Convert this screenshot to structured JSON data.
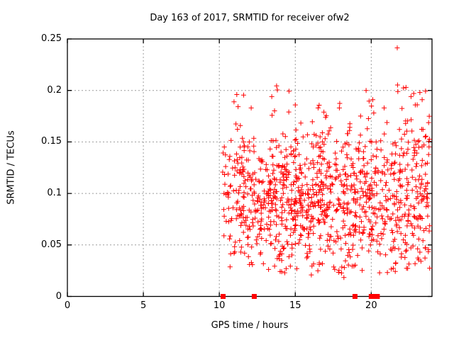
{
  "title": "Day 163 of 2017, SRMTID for receiver ofw2",
  "axes": {
    "x": {
      "label": "GPS time / hours",
      "lim": [
        0,
        24
      ],
      "ticks": [
        {
          "v": 0,
          "label": "0"
        },
        {
          "v": 5,
          "label": "5"
        },
        {
          "v": 10,
          "label": "10"
        },
        {
          "v": 15,
          "label": "15"
        },
        {
          "v": 20,
          "label": "20"
        }
      ]
    },
    "y": {
      "label": "SRMTID / TECUs",
      "lim": [
        0,
        0.25
      ],
      "ticks": [
        {
          "v": 0,
          "label": "0"
        },
        {
          "v": 0.05,
          "label": "0.05"
        },
        {
          "v": 0.1,
          "label": "0.1"
        },
        {
          "v": 0.15,
          "label": "0.15"
        },
        {
          "v": 0.2,
          "label": "0.2"
        },
        {
          "v": 0.25,
          "label": "0.25"
        }
      ]
    }
  },
  "colors": {
    "marker": "#ff0000",
    "grid": "#9c9c9c",
    "border": "#000000",
    "text": "#000000",
    "background": "#ffffff"
  },
  "chart_data": {
    "type": "scatter",
    "title": "Day 163 of 2017, SRMTID for receiver ofw2",
    "xlabel": "GPS time / hours",
    "ylabel": "SRMTID / TECUs",
    "xlim": [
      0,
      24
    ],
    "ylim": [
      0,
      0.25
    ],
    "grid": true,
    "legend": "none",
    "marker": {
      "shape": "plus",
      "color": "#ff0000",
      "size": 7
    },
    "x_data_range": [
      10.2,
      23.85
    ],
    "y_data_range": [
      0.018,
      0.242
    ],
    "note": "Dense unlabeled point cloud (~1100 pts); reproduced deterministically from seeded clusters below plus explicit extreme points read from pixels.",
    "seed": 163,
    "clusters": [
      {
        "x0": 10.2,
        "x1": 11.05,
        "n": 40,
        "mean": 0.1,
        "sd": 0.038
      },
      {
        "x0": 11.05,
        "x1": 12.35,
        "n": 105,
        "mean": 0.095,
        "sd": 0.035
      },
      {
        "x0": 12.35,
        "x1": 13.4,
        "n": 80,
        "mean": 0.09,
        "sd": 0.032
      },
      {
        "x0": 13.4,
        "x1": 14.6,
        "n": 115,
        "mean": 0.1,
        "sd": 0.036
      },
      {
        "x0": 14.6,
        "x1": 16.1,
        "n": 135,
        "mean": 0.092,
        "sd": 0.032
      },
      {
        "x0": 16.1,
        "x1": 17.6,
        "n": 135,
        "mean": 0.095,
        "sd": 0.034
      },
      {
        "x0": 17.6,
        "x1": 19.1,
        "n": 125,
        "mean": 0.093,
        "sd": 0.035
      },
      {
        "x0": 19.1,
        "x1": 20.6,
        "n": 115,
        "mean": 0.1,
        "sd": 0.036
      },
      {
        "x0": 20.6,
        "x1": 21.6,
        "n": 70,
        "mean": 0.095,
        "sd": 0.035
      },
      {
        "x0": 21.6,
        "x1": 22.7,
        "n": 85,
        "mean": 0.1,
        "sd": 0.036
      },
      {
        "x0": 22.7,
        "x1": 23.85,
        "n": 100,
        "mean": 0.1,
        "sd": 0.037
      }
    ],
    "outliers": [
      [
        10.97,
        0.189
      ],
      [
        11.15,
        0.196
      ],
      [
        11.6,
        0.1955
      ],
      [
        12.1,
        0.183
      ],
      [
        13.45,
        0.194
      ],
      [
        13.77,
        0.2045
      ],
      [
        13.82,
        0.2005
      ],
      [
        15.0,
        0.186
      ],
      [
        16.5,
        0.183
      ],
      [
        17.9,
        0.183
      ],
      [
        19.66,
        0.2
      ],
      [
        20.1,
        0.191
      ],
      [
        20.85,
        0.183
      ],
      [
        21.71,
        0.2413
      ],
      [
        21.73,
        0.2053
      ],
      [
        21.75,
        0.199
      ],
      [
        22.62,
        0.194
      ],
      [
        22.9,
        0.186
      ],
      [
        23.2,
        0.198
      ],
      [
        23.35,
        0.191
      ],
      [
        14.4,
        0.027
      ],
      [
        16.1,
        0.0295
      ],
      [
        18.2,
        0.0184
      ],
      [
        19.4,
        0.0253
      ],
      [
        20.55,
        0.023
      ],
      [
        21.6,
        0.032
      ]
    ],
    "baseline_marks": {
      "shape": "filled-square",
      "color": "#ff0000",
      "y": 0,
      "x": [
        10.25,
        12.3,
        18.93,
        20.0,
        20.2,
        20.4
      ]
    }
  }
}
